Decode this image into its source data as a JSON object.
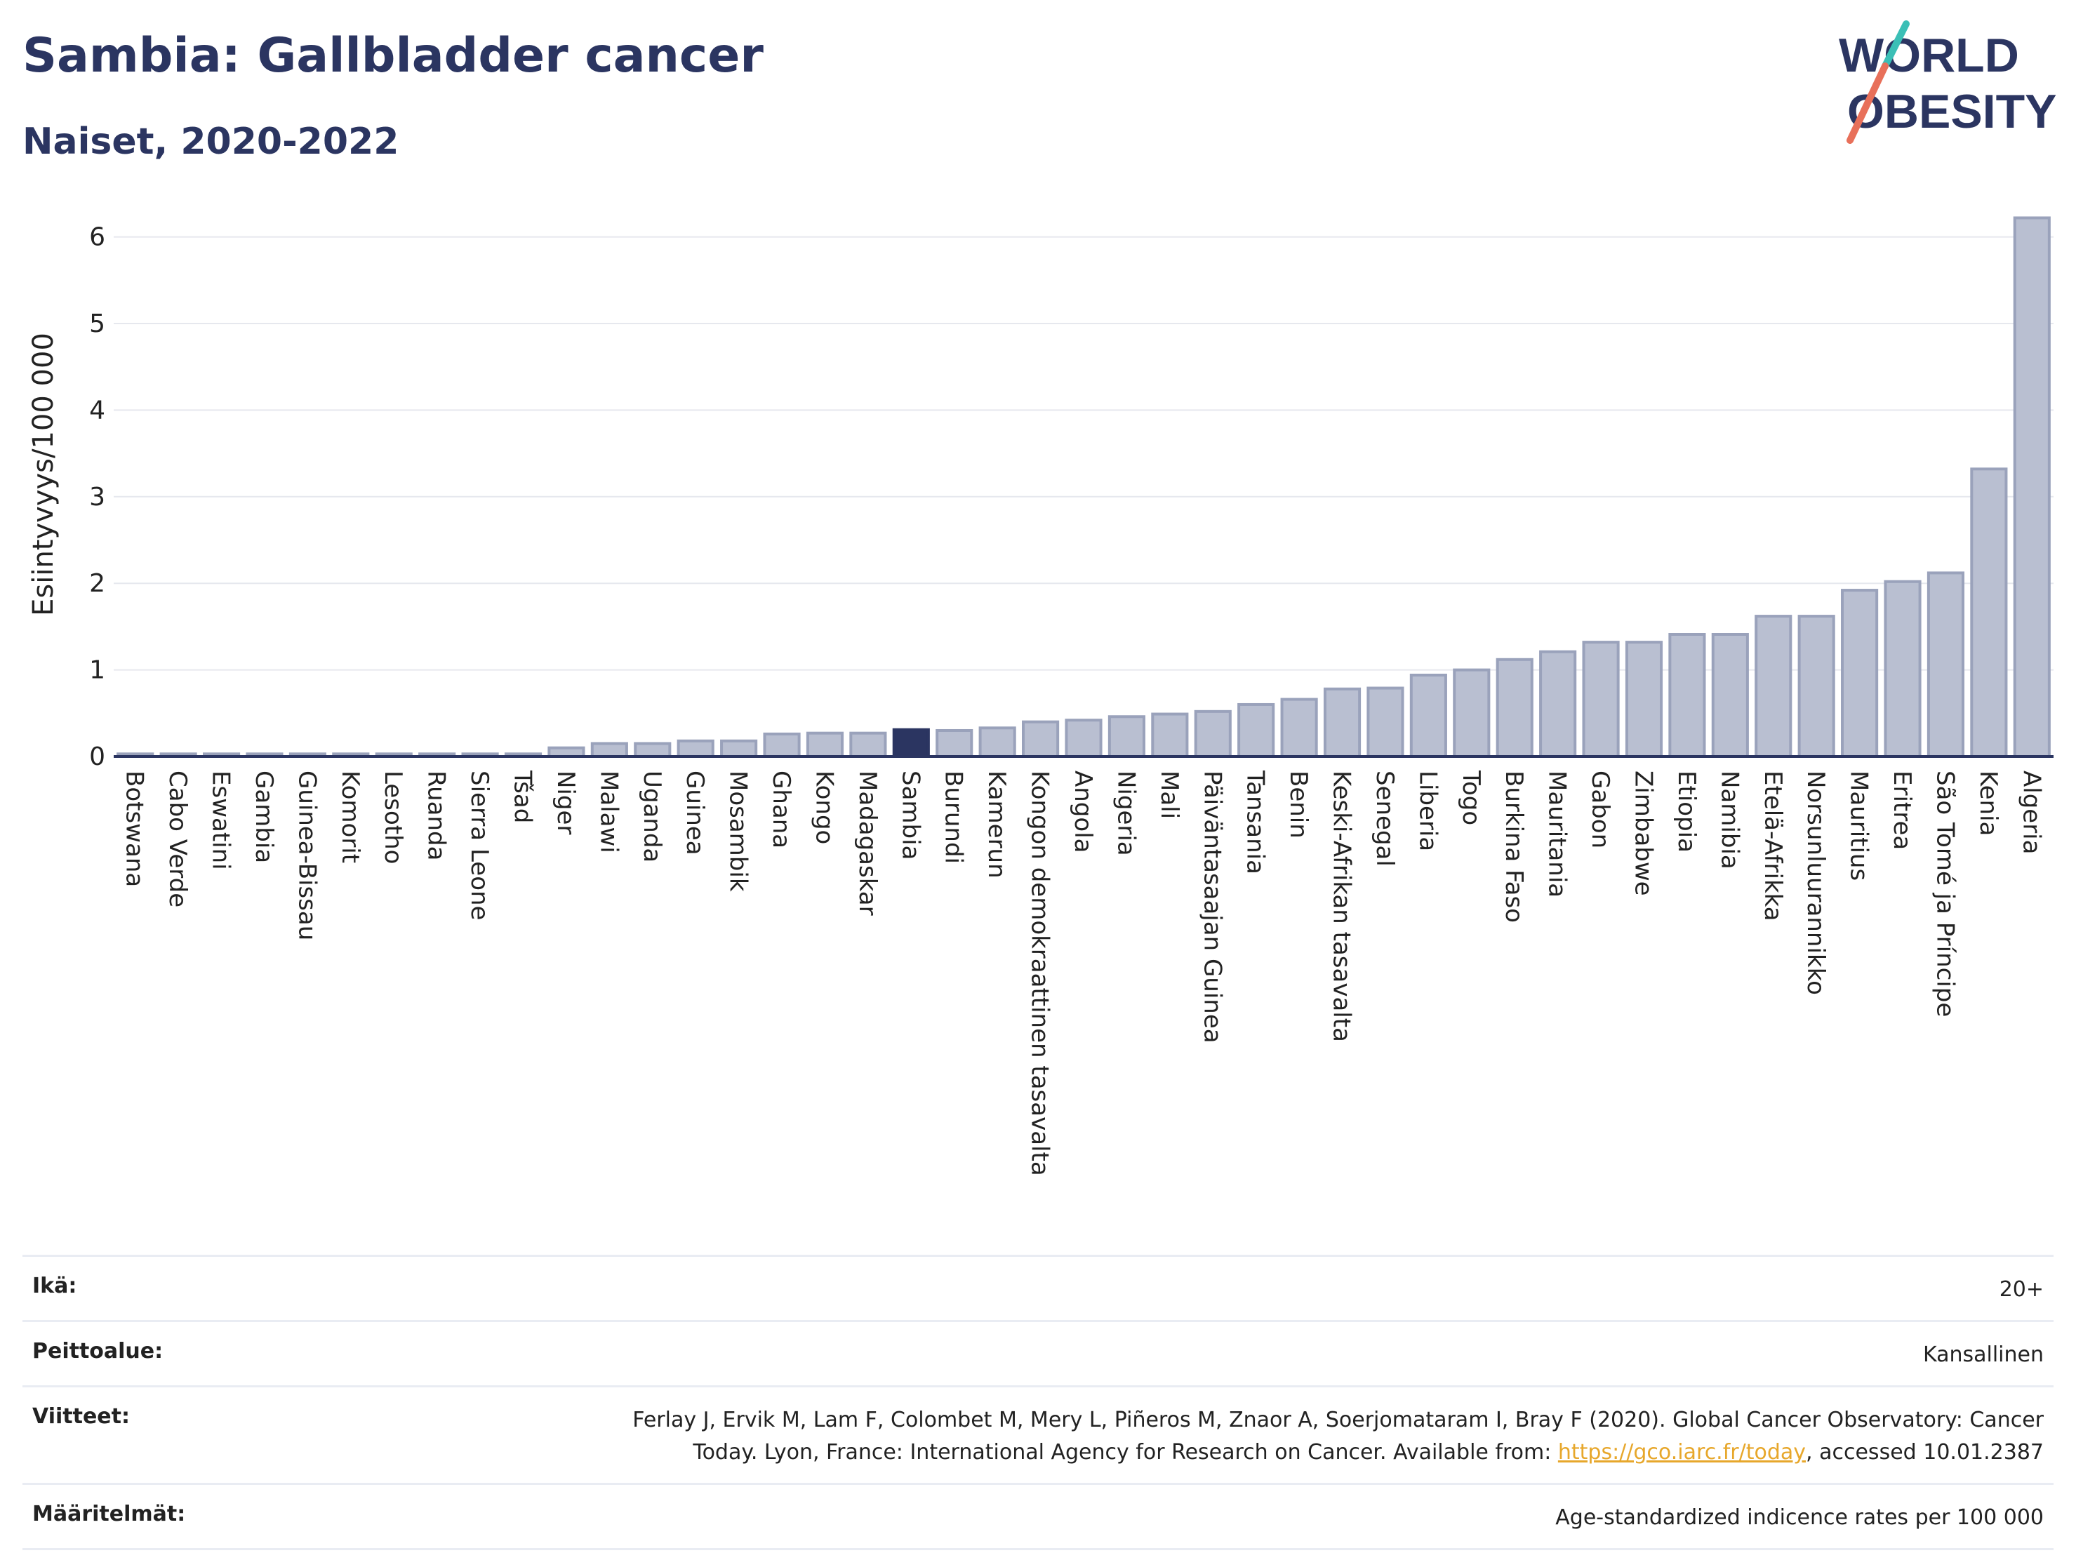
{
  "header": {
    "title": "Sambia: Gallbladder cancer",
    "subtitle": "Naiset, 2020-2022"
  },
  "logo": {
    "line1": "WORLD",
    "line2": "OBESITY"
  },
  "colors": {
    "bar": "#b9bfd1",
    "bar_stroke": "#9aa2bb",
    "highlight": "#2b3561",
    "grid": "#e6e8ee",
    "axis": "#2b3561"
  },
  "chart_data": {
    "type": "bar",
    "title": "Sambia: Gallbladder cancer",
    "subtitle": "Naiset, 2020-2022",
    "xlabel": "",
    "ylabel": "Esiintyvyys/100 000",
    "ylim": [
      0,
      6.5
    ],
    "yticks": [
      0,
      1,
      2,
      3,
      4,
      5,
      6
    ],
    "grid": true,
    "highlight": "Sambia",
    "categories": [
      "Botswana",
      "Cabo Verde",
      "Eswatini",
      "Gambia",
      "Guinea-Bissau",
      "Komorit",
      "Lesotho",
      "Ruanda",
      "Sierra Leone",
      "Tšad",
      "Niger",
      "Malawi",
      "Uganda",
      "Guinea",
      "Mosambik",
      "Ghana",
      "Kongo",
      "Madagaskar",
      "Sambia",
      "Burundi",
      "Kamerun",
      "Kongon demokraattinen tasavalta",
      "Angola",
      "Nigeria",
      "Mali",
      "Päiväntasaajan Guinea",
      "Tansania",
      "Benin",
      "Keski-Afrikan tasavalta",
      "Senegal",
      "Liberia",
      "Togo",
      "Burkina Faso",
      "Mauritania",
      "Gabon",
      "Zimbabwe",
      "Etiopia",
      "Namibia",
      "Etelä-Afrikka",
      "Norsunluurannikko",
      "Mauritius",
      "Eritrea",
      "São Tomé ja Príncipe",
      "Kenia",
      "Algeria"
    ],
    "values": [
      0.03,
      0.03,
      0.03,
      0.03,
      0.03,
      0.03,
      0.03,
      0.03,
      0.03,
      0.03,
      0.1,
      0.15,
      0.15,
      0.18,
      0.18,
      0.26,
      0.27,
      0.27,
      0.31,
      0.3,
      0.33,
      0.4,
      0.42,
      0.46,
      0.49,
      0.52,
      0.6,
      0.66,
      0.78,
      0.79,
      0.94,
      1.0,
      1.12,
      1.21,
      1.32,
      1.32,
      1.41,
      1.41,
      1.62,
      1.62,
      1.92,
      2.02,
      2.12,
      3.32,
      6.22
    ]
  },
  "info": {
    "age_label": "Ikä:",
    "age_value": "20+",
    "coverage_label": "Peittoalue:",
    "coverage_value": "Kansallinen",
    "refs_label": "Viitteet:",
    "refs_text_1": "Ferlay J, Ervik M, Lam F, Colombet M, Mery L, Piñeros M, Znaor A, Soerjomataram I, Bray F (2020). Global Cancer Observatory: Cancer",
    "refs_text_2": "Today. Lyon, France: International Agency for Research on Cancer. Available from: ",
    "refs_link": "https://gco.iarc.fr/today",
    "refs_text_3": ", accessed 10.01.2387",
    "defs_label": "Määritelmät:",
    "defs_value": "Age-standardized indicence rates per 100 000"
  }
}
